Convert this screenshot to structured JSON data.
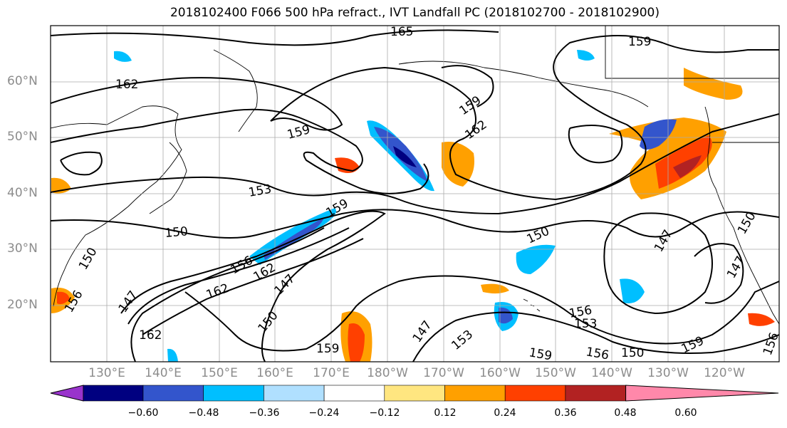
{
  "title": "2018102400 F066 500 hPa refract., IVT Landfall PC (2018102700 - 2018102900)",
  "lat_labels": [
    "60°N",
    "50°N",
    "40°N",
    "30°N",
    "20°N"
  ],
  "lon_labels": [
    "130°E",
    "140°E",
    "150°E",
    "160°E",
    "170°E",
    "180°W",
    "170°W",
    "160°W",
    "150°W",
    "140°W",
    "130°W",
    "120°W"
  ],
  "contour_labels": [
    "165",
    "162",
    "159",
    "159",
    "162",
    "159",
    "153",
    "159",
    "150",
    "150",
    "156",
    "162",
    "147",
    "150",
    "156",
    "162",
    "147",
    "150",
    "162",
    "159",
    "147",
    "153",
    "156",
    "159",
    "156",
    "150",
    "159",
    "147",
    "147",
    "150",
    "156",
    "153"
  ],
  "colorbar": {
    "ticks": [
      "−0.60",
      "−0.48",
      "−0.36",
      "−0.24",
      "−0.12",
      "0.12",
      "0.24",
      "0.36",
      "0.48",
      "0.60"
    ],
    "colors": [
      "#9933cc",
      "#000080",
      "#3355cc",
      "#00bfff",
      "#b0e0ff",
      "#ffffff",
      "#ffe680",
      "#ffa000",
      "#ff4000",
      "#b22222",
      "#ff88aa"
    ]
  }
}
